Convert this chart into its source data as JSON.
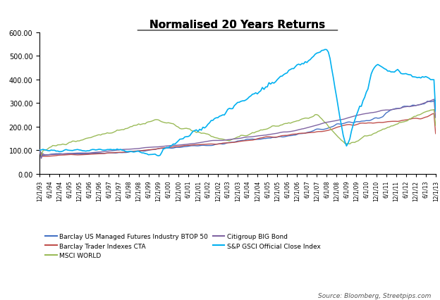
{
  "title": "Normalised 20 Years Returns",
  "source_text": "Source: Bloomberg, Streetpips.com",
  "series": {
    "Barclay US Managed Futures Industry BTOP 50": {
      "color": "#4472C4"
    },
    "Barclay Trader Indexes CTA": {
      "color": "#C0504D"
    },
    "MSCI WORLD": {
      "color": "#9BBB59"
    },
    "Citigroup BIG Bond": {
      "color": "#8064A2"
    },
    "S&P GSCI Official Close Index": {
      "color": "#00B0F0"
    }
  },
  "ylim": [
    0,
    600
  ],
  "yticks": [
    0,
    100,
    200,
    300,
    400,
    500,
    600
  ],
  "background_color": "#FFFFFF"
}
